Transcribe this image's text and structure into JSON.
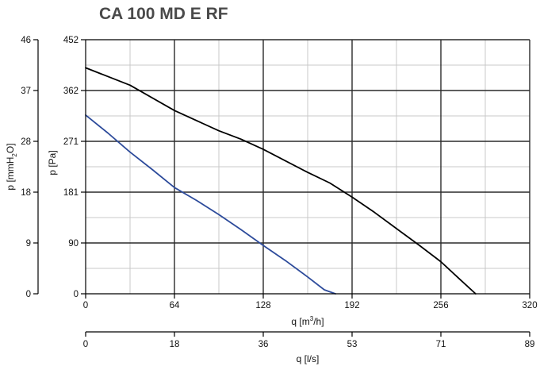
{
  "chart_data": {
    "type": "line",
    "title": "CA 100 MD E RF",
    "x_primary": {
      "label_text": "q [m",
      "label_sup": "3",
      "label_tail": "/h]",
      "ticks": [
        "0",
        "64",
        "128",
        "192",
        "256",
        "320"
      ],
      "range": [
        0,
        320
      ]
    },
    "x_secondary": {
      "label": "q [l/s]",
      "ticks": [
        "0",
        "18",
        "36",
        "53",
        "71",
        "89"
      ],
      "range": [
        0,
        89
      ]
    },
    "y_primary": {
      "label": "p [Pa]",
      "ticks": [
        "0",
        "90",
        "181",
        "271",
        "362",
        "452"
      ],
      "range": [
        0,
        452
      ]
    },
    "y_secondary": {
      "label_text": "p [mmH",
      "label_sub": "2",
      "label_tail": "O]",
      "ticks": [
        "0",
        "9",
        "18",
        "28",
        "37",
        "46"
      ],
      "range": [
        0,
        46
      ]
    },
    "grid": true,
    "series": [
      {
        "color": "#000000",
        "x": [
          0,
          32,
          64,
          96,
          112,
          128,
          160,
          176,
          192,
          208,
          224,
          240,
          256,
          270,
          281
        ],
        "y": [
          402,
          371,
          326,
          290,
          275,
          257,
          216,
          197,
          172,
          145,
          116,
          87,
          57,
          25,
          0
        ]
      },
      {
        "color": "#2d4b9b",
        "x": [
          0,
          16,
          32,
          48,
          64,
          80,
          96,
          112,
          128,
          144,
          160,
          172,
          180
        ],
        "y": [
          318,
          286,
          252,
          221,
          189,
          166,
          141,
          114,
          86,
          59,
          30,
          7,
          0
        ]
      }
    ]
  }
}
